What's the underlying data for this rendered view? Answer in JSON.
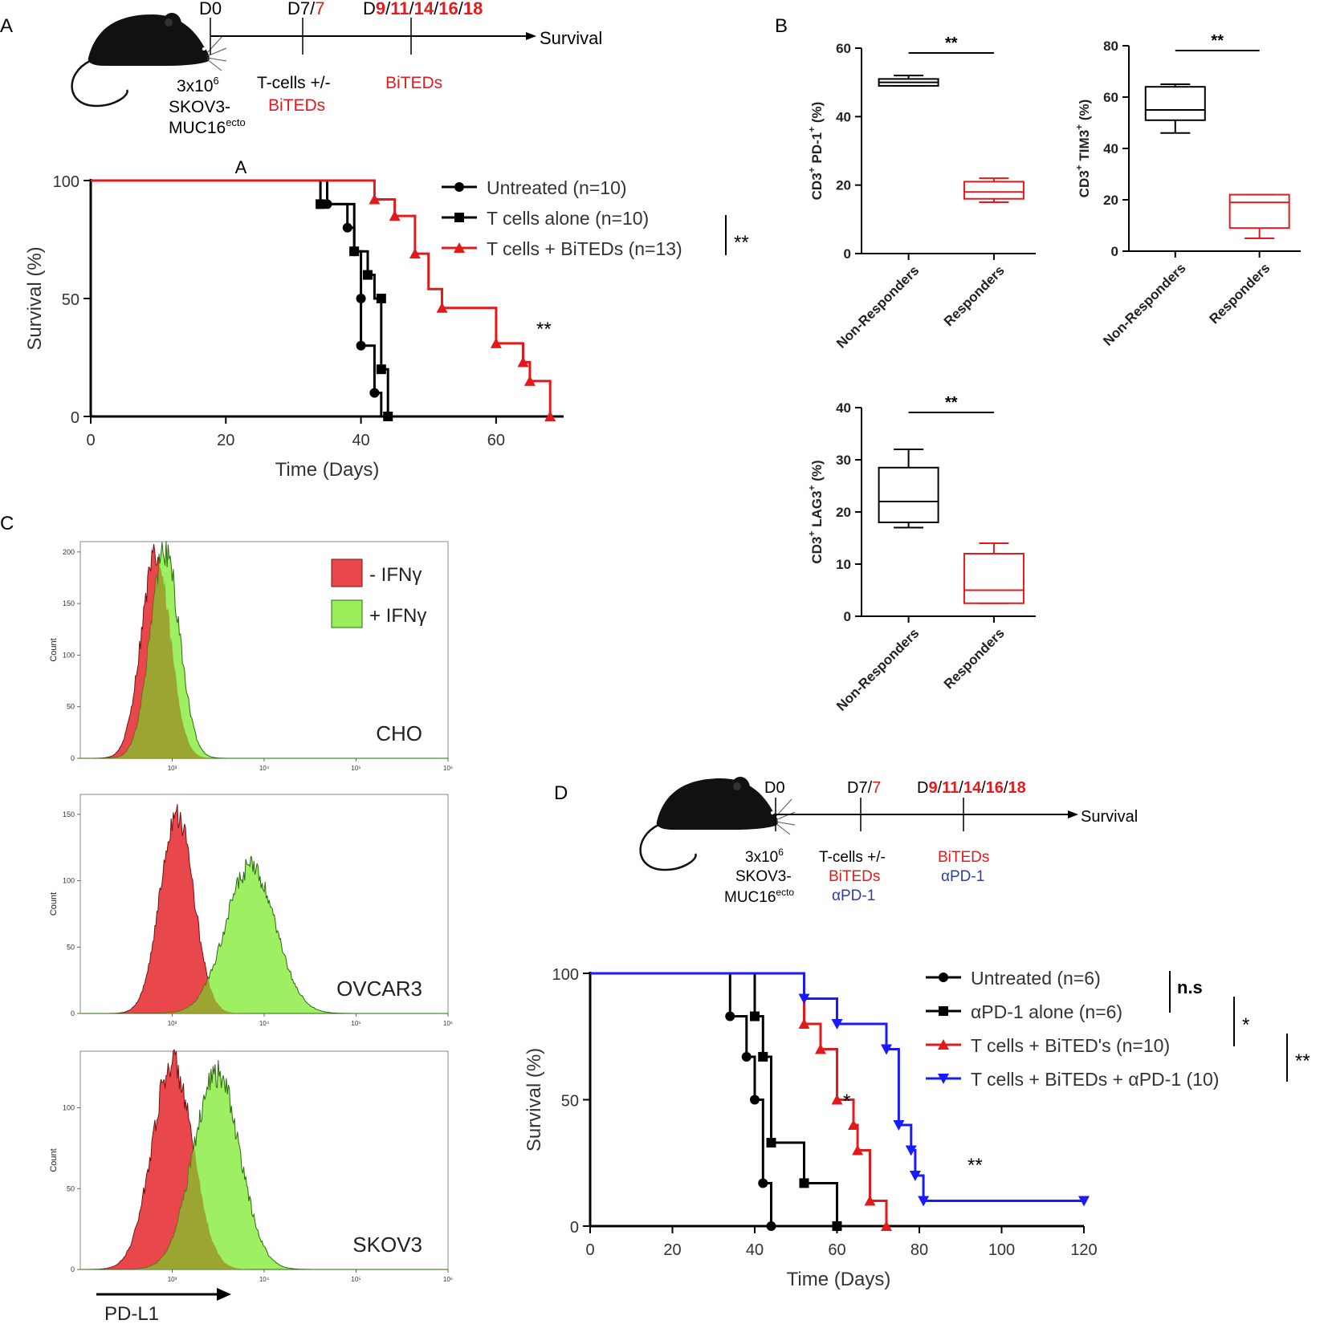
{
  "colors": {
    "black": "#000000",
    "red": "#e31a1c",
    "blue": "#1a1aff",
    "green_fill": "#9aee5a",
    "green_edge": "#2a6a10",
    "red_fill": "#e8474b",
    "overlap": "#9a9a2a",
    "red_text": "#e41a1c",
    "blue_text": "#2b3fa8"
  },
  "panels": {
    "a": {
      "letter": "A",
      "marker": "A"
    },
    "b": {
      "letter": "B"
    },
    "c": {
      "letter": "C"
    },
    "d": {
      "letter": "D"
    }
  },
  "timelines": {
    "a": {
      "d0": "D0",
      "d7_black": "D7/",
      "d7_red": "7",
      "d9_black": "D",
      "d9_parts": [
        "9",
        "/",
        "11",
        "/",
        "14",
        "/",
        "16",
        "/",
        "18"
      ],
      "survival": "Survival",
      "cells_line1": "3x10",
      "cells_sup": "6",
      "cells_line2": "SKOV3-",
      "cells_line3": "MUC16",
      "cells_line3_sup": "ecto",
      "tcells_line1": "T-cells +/-",
      "tcells_line2": "BiTEDs",
      "bited_label": "BiTEDs"
    },
    "d": {
      "d0": "D0",
      "d7_black": "D7/",
      "d7_red": "7",
      "d9_black": "D",
      "d9_parts": [
        "9",
        "/",
        "11",
        "/",
        "14",
        "/",
        "16",
        "/",
        "18"
      ],
      "survival": "Survival",
      "cells_line1": "3x10",
      "cells_sup": "6",
      "cells_line2": "SKOV3-",
      "cells_line3": "MUC16",
      "cells_line3_sup": "ecto",
      "tcells_line1": "T-cells +/-",
      "tcells_line2": "BiTEDs",
      "tcells_line3": "αPD-1",
      "bited_label": "BiTEDs",
      "apd1_label": "αPD-1"
    }
  },
  "chart_data": [
    {
      "id": "A-survival",
      "type": "line",
      "subtype": "kaplan-meier",
      "xlabel": "Time (Days)",
      "ylabel": "Survival (%)",
      "xlim": [
        0,
        70
      ],
      "ylim": [
        0,
        100
      ],
      "xticks": [
        0,
        20,
        40,
        60
      ],
      "yticks": [
        0,
        50,
        100
      ],
      "series": [
        {
          "name": "Untreated (n=10)",
          "color": "#000000",
          "marker": "circle",
          "steps": [
            [
              0,
              100
            ],
            [
              35,
              100
            ],
            [
              35,
              90
            ],
            [
              38,
              90
            ],
            [
              38,
              80
            ],
            [
              39,
              80
            ],
            [
              39,
              70
            ],
            [
              40,
              70
            ],
            [
              40,
              50
            ],
            [
              40,
              40
            ],
            [
              40,
              30
            ],
            [
              42,
              30
            ],
            [
              42,
              20
            ],
            [
              42,
              10
            ],
            [
              43,
              10
            ],
            [
              43,
              0
            ]
          ],
          "markers": [
            [
              35,
              90
            ],
            [
              38,
              80
            ],
            [
              39,
              70
            ],
            [
              40,
              50
            ],
            [
              40,
              30
            ],
            [
              42,
              10
            ]
          ]
        },
        {
          "name": "T cells alone (n=10)",
          "color": "#000000",
          "marker": "square",
          "steps": [
            [
              0,
              100
            ],
            [
              34,
              100
            ],
            [
              34,
              90
            ],
            [
              39,
              90
            ],
            [
              39,
              70
            ],
            [
              41,
              70
            ],
            [
              41,
              60
            ],
            [
              42,
              60
            ],
            [
              42,
              50
            ],
            [
              43,
              50
            ],
            [
              43,
              20
            ],
            [
              44,
              20
            ],
            [
              44,
              0
            ]
          ],
          "markers": [
            [
              34,
              90
            ],
            [
              39,
              70
            ],
            [
              41,
              60
            ],
            [
              43,
              50
            ],
            [
              43,
              20
            ],
            [
              44,
              0
            ]
          ]
        },
        {
          "name": "T cells + BiTEDs (n=13)",
          "color": "#e31a1c",
          "marker": "triangle",
          "steps": [
            [
              0,
              100
            ],
            [
              42,
              100
            ],
            [
              42,
              92
            ],
            [
              45,
              92
            ],
            [
              45,
              85
            ],
            [
              48,
              85
            ],
            [
              48,
              69
            ],
            [
              50,
              69
            ],
            [
              50,
              54
            ],
            [
              52,
              54
            ],
            [
              52,
              46
            ],
            [
              60,
              46
            ],
            [
              60,
              31
            ],
            [
              64,
              31
            ],
            [
              64,
              23
            ],
            [
              65,
              23
            ],
            [
              65,
              15
            ],
            [
              68,
              15
            ],
            [
              68,
              0
            ]
          ],
          "markers": [
            [
              42,
              92
            ],
            [
              45,
              85
            ],
            [
              48,
              69
            ],
            [
              52,
              46
            ],
            [
              60,
              31
            ],
            [
              64,
              23
            ],
            [
              65,
              15
            ],
            [
              68,
              0
            ]
          ]
        }
      ],
      "legend_position": "top-right",
      "bracket_label": "**",
      "annotation": "**"
    },
    {
      "id": "B-PD1",
      "type": "box",
      "ylabel_main": "CD3",
      "ylabel_rest": "PD-1",
      "ylabel_end": "(%)",
      "categories": [
        "Non-Responders",
        "Responders"
      ],
      "ylim": [
        0,
        60
      ],
      "yticks": [
        0,
        20,
        40,
        60
      ],
      "boxes": [
        {
          "color": "#000000",
          "min": 49,
          "q1": 49,
          "median": 50,
          "q3": 51,
          "max": 52
        },
        {
          "color": "#e31a1c",
          "min": 15,
          "q1": 16,
          "median": 18,
          "q3": 21,
          "max": 22
        }
      ],
      "significance": "**"
    },
    {
      "id": "B-TIM3",
      "type": "box",
      "ylabel_main": "CD3",
      "ylabel_rest": "TIM3",
      "ylabel_end": "(%)",
      "categories": [
        "Non-Responders",
        "Responders"
      ],
      "ylim": [
        0,
        80
      ],
      "yticks": [
        0,
        20,
        40,
        60,
        80
      ],
      "boxes": [
        {
          "color": "#000000",
          "min": 46,
          "q1": 51,
          "median": 55,
          "q3": 64,
          "max": 65
        },
        {
          "color": "#e31a1c",
          "min": 5,
          "q1": 9,
          "median": 19,
          "q3": 22,
          "max": 22
        }
      ],
      "significance": "**"
    },
    {
      "id": "B-LAG3",
      "type": "box",
      "ylabel_main": "CD3",
      "ylabel_rest": "LAG3",
      "ylabel_end": "(%)",
      "categories": [
        "Non-Responders",
        "Responders"
      ],
      "ylim": [
        0,
        40
      ],
      "yticks": [
        0,
        10,
        20,
        30,
        40
      ],
      "boxes": [
        {
          "color": "#000000",
          "min": 17,
          "q1": 18,
          "median": 22,
          "q3": 28.5,
          "max": 32
        },
        {
          "color": "#e31a1c",
          "min": 2.5,
          "q1": 2.5,
          "median": 5,
          "q3": 12,
          "max": 14
        }
      ],
      "significance": "**"
    },
    {
      "id": "C-flow",
      "type": "area",
      "subtype": "histogram-overlay",
      "xlabel": "PD-L1",
      "ylabel": "Count",
      "legend": [
        "- IFNγ",
        "+ IFNγ"
      ],
      "x_scale": "log",
      "xticks": [
        "10³",
        "10⁴",
        "10⁵",
        "10⁶"
      ],
      "xtick_values": [
        3,
        4,
        5,
        6
      ],
      "xlim_log": [
        2,
        6
      ],
      "panels": [
        {
          "label": "CHO",
          "yticks": [
            0,
            50,
            100,
            150,
            200
          ],
          "ymax": 210,
          "neg": {
            "center": 2.82,
            "sigma": 0.16,
            "peak": 195
          },
          "pos": {
            "center": 2.92,
            "sigma": 0.16,
            "peak": 200
          }
        },
        {
          "label": "OVCAR3",
          "yticks": [
            0,
            50,
            100,
            150
          ],
          "ymax": 165,
          "neg": {
            "center": 3.05,
            "sigma": 0.18,
            "peak": 152
          },
          "pos": {
            "center": 3.85,
            "sigma": 0.27,
            "peak": 110
          }
        },
        {
          "label": "SKOV3",
          "yticks": [
            0,
            50,
            100
          ],
          "ymax": 135,
          "neg": {
            "center": 3.0,
            "sigma": 0.22,
            "peak": 128
          },
          "pos": {
            "center": 3.48,
            "sigma": 0.25,
            "peak": 122
          }
        }
      ]
    },
    {
      "id": "D-survival",
      "type": "line",
      "subtype": "kaplan-meier",
      "xlabel": "Time (Days)",
      "ylabel": "Survival (%)",
      "xlim": [
        0,
        120
      ],
      "ylim": [
        0,
        100
      ],
      "xticks": [
        0,
        20,
        40,
        60,
        80,
        100,
        120
      ],
      "yticks": [
        0,
        50,
        100
      ],
      "series": [
        {
          "name": "Untreated (n=6)",
          "color": "#000000",
          "marker": "circle",
          "steps": [
            [
              0,
              100
            ],
            [
              34,
              100
            ],
            [
              34,
              83
            ],
            [
              38,
              83
            ],
            [
              38,
              67
            ],
            [
              40,
              67
            ],
            [
              40,
              50
            ],
            [
              42,
              50
            ],
            [
              42,
              17
            ],
            [
              44,
              17
            ],
            [
              44,
              0
            ]
          ],
          "markers": [
            [
              34,
              83
            ],
            [
              38,
              67
            ],
            [
              40,
              50
            ],
            [
              42,
              17
            ],
            [
              44,
              0
            ]
          ]
        },
        {
          "name": "αPD-1 alone (n=6)",
          "color": "#000000",
          "marker": "square",
          "steps": [
            [
              0,
              100
            ],
            [
              40,
              100
            ],
            [
              40,
              83
            ],
            [
              42,
              83
            ],
            [
              42,
              67
            ],
            [
              44,
              67
            ],
            [
              44,
              33
            ],
            [
              52,
              33
            ],
            [
              52,
              17
            ],
            [
              60,
              17
            ],
            [
              60,
              0
            ]
          ],
          "markers": [
            [
              40,
              83
            ],
            [
              42,
              67
            ],
            [
              44,
              33
            ],
            [
              52,
              17
            ],
            [
              60,
              0
            ]
          ]
        },
        {
          "name": "T cells + BiTED's (n=10)",
          "color": "#e31a1c",
          "marker": "triangle",
          "steps": [
            [
              0,
              100
            ],
            [
              52,
              100
            ],
            [
              52,
              80
            ],
            [
              56,
              80
            ],
            [
              56,
              70
            ],
            [
              60,
              70
            ],
            [
              60,
              50
            ],
            [
              64,
              50
            ],
            [
              64,
              40
            ],
            [
              65,
              40
            ],
            [
              65,
              30
            ],
            [
              68,
              30
            ],
            [
              68,
              10
            ],
            [
              72,
              10
            ],
            [
              72,
              0
            ]
          ],
          "markers": [
            [
              52,
              80
            ],
            [
              56,
              70
            ],
            [
              60,
              50
            ],
            [
              64,
              40
            ],
            [
              65,
              30
            ],
            [
              68,
              10
            ],
            [
              72,
              0
            ]
          ]
        },
        {
          "name": "T cells + BiTEDs + αPD-1 (10)",
          "color": "#1a1aff",
          "marker": "triangle-down",
          "steps": [
            [
              0,
              100
            ],
            [
              52,
              100
            ],
            [
              52,
              90
            ],
            [
              60,
              90
            ],
            [
              60,
              80
            ],
            [
              72,
              80
            ],
            [
              72,
              70
            ],
            [
              75,
              70
            ],
            [
              75,
              40
            ],
            [
              78,
              40
            ],
            [
              78,
              30
            ],
            [
              79,
              30
            ],
            [
              79,
              20
            ],
            [
              81,
              20
            ],
            [
              81,
              10
            ],
            [
              120,
              10
            ]
          ],
          "markers": [
            [
              52,
              90
            ],
            [
              60,
              80
            ],
            [
              72,
              70
            ],
            [
              75,
              40
            ],
            [
              78,
              30
            ],
            [
              79,
              20
            ],
            [
              81,
              10
            ],
            [
              120,
              10
            ]
          ]
        }
      ],
      "legend_position": "top-right",
      "brackets": [
        "n.s",
        "*",
        "**"
      ],
      "annotations": [
        "*",
        "**"
      ]
    }
  ]
}
